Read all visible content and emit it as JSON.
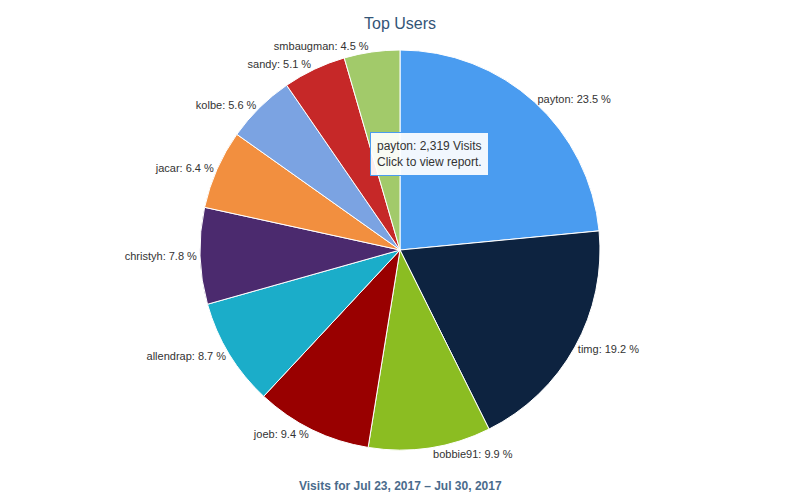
{
  "chart_data": {
    "type": "pie",
    "title": "Top Users",
    "subtitle": "Visits for Jul 23, 2017 – Jul 30, 2017",
    "categories": [
      "payton",
      "timg",
      "bobbie91",
      "joeb",
      "allendrap",
      "christyh",
      "jacar",
      "kolbe",
      "sandy",
      "smbaugman"
    ],
    "values": [
      23.5,
      19.2,
      9.9,
      9.4,
      8.7,
      7.8,
      6.4,
      5.6,
      5.1,
      4.5
    ],
    "value_labels": [
      "payton: 23.5 %",
      "timg: 19.2 %",
      "bobbie91: 9.9 %",
      "joeb: 9.4 %",
      "allendrap: 8.7 %",
      "christyh: 7.8 %",
      "jacar: 6.4 %",
      "kolbe: 5.6 %",
      "sandy: 5.1 %",
      "smbaugman: 4.5 %"
    ],
    "colors": [
      "#4a9cf0",
      "#0d2340",
      "#8bbd22",
      "#990000",
      "#1badc9",
      "#4b2a6e",
      "#f28f3f",
      "#7ba3e2",
      "#c62828",
      "#a2ca6a"
    ],
    "data_labels": true,
    "annotations": [
      {
        "lines": [
          "payton: 2,319 Visits",
          "Click to view report."
        ]
      }
    ]
  }
}
